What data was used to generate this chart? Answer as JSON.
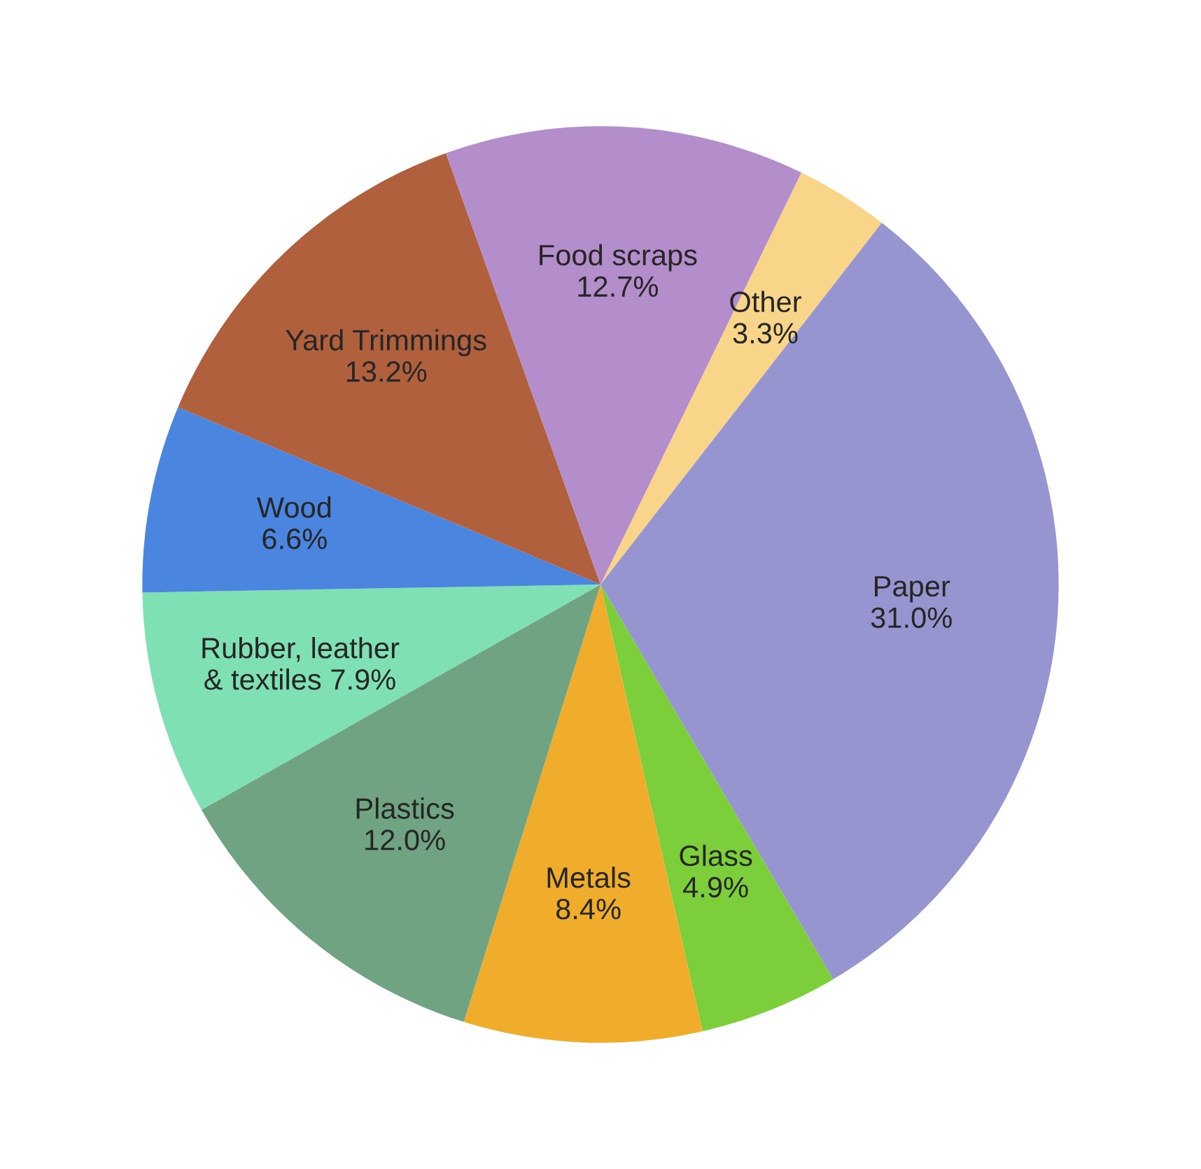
{
  "chart_data": {
    "type": "pie",
    "categories": [
      "Other",
      "Paper",
      "Glass",
      "Metals",
      "Plastics",
      "Rubber, leather & textiles",
      "Wood",
      "Yard Trimmings",
      "Food scraps"
    ],
    "values": [
      3.3,
      31.0,
      4.9,
      8.4,
      12.0,
      7.9,
      6.6,
      13.2,
      12.7
    ],
    "value_labels": [
      "3.3%",
      "31.0%",
      "4.9%",
      "8.4%",
      "12.0%",
      "7.9%",
      "6.6%",
      "13.2%",
      "12.7%"
    ],
    "colors": [
      "#f9d58a",
      "#9795cf",
      "#7ccf3a",
      "#f0ad2c",
      "#6fa382",
      "#7fe0b4",
      "#4a85e0",
      "#b0603c",
      "#b48dcb"
    ]
  }
}
